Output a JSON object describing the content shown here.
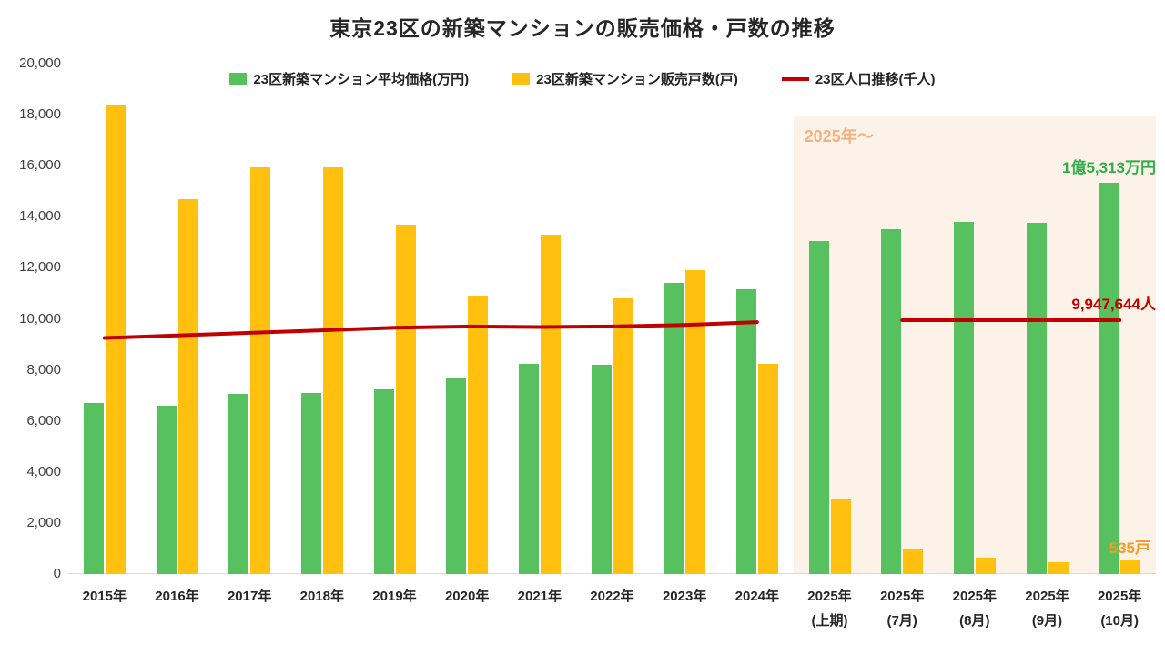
{
  "title": "東京23区の新築マンションの販売価格・戸数の推移",
  "annotations": {
    "highlight_label": "2025年〜",
    "price_label": "1億5,313万円",
    "population_label": "9,947,644人",
    "units_label": "535戸"
  },
  "chart_data": {
    "type": "bar",
    "title": "東京23区の新築マンションの販売価格・戸数の推移",
    "ylim": [
      0,
      20000
    ],
    "y_tick_step": 2000,
    "grid": false,
    "legend_position": "top",
    "highlight_start_index": 10,
    "categories": [
      {
        "label": "2015年",
        "sub": ""
      },
      {
        "label": "2016年",
        "sub": ""
      },
      {
        "label": "2017年",
        "sub": ""
      },
      {
        "label": "2018年",
        "sub": ""
      },
      {
        "label": "2019年",
        "sub": ""
      },
      {
        "label": "2020年",
        "sub": ""
      },
      {
        "label": "2021年",
        "sub": ""
      },
      {
        "label": "2022年",
        "sub": ""
      },
      {
        "label": "2023年",
        "sub": ""
      },
      {
        "label": "2024年",
        "sub": ""
      },
      {
        "label": "2025年",
        "sub": "(上期)"
      },
      {
        "label": "2025年",
        "sub": "(7月)"
      },
      {
        "label": "2025年",
        "sub": "(8月)"
      },
      {
        "label": "2025年",
        "sub": "(9月)"
      },
      {
        "label": "2025年",
        "sub": "(10月)"
      }
    ],
    "series": [
      {
        "name": "23区新築マンション平均価格(万円)",
        "type": "bar",
        "color": "#57c05f",
        "values": [
          6700,
          6600,
          7050,
          7100,
          7250,
          7650,
          8250,
          8200,
          11400,
          11150,
          13050,
          13500,
          13800,
          13750,
          15313
        ]
      },
      {
        "name": "23区新築マンション販売戸数(戸)",
        "type": "bar",
        "color": "#ffc010",
        "values": [
          18400,
          14700,
          15950,
          15950,
          13700,
          10900,
          13300,
          10800,
          11900,
          8250,
          2950,
          1000,
          650,
          480,
          535
        ]
      },
      {
        "name": "23区人口推移(千人)",
        "type": "line",
        "color": "#c00000",
        "values": [
          9250,
          9350,
          9450,
          9550,
          9650,
          9700,
          9680,
          9700,
          9760,
          9870,
          null,
          9948,
          9948,
          9948,
          9948
        ]
      }
    ]
  }
}
